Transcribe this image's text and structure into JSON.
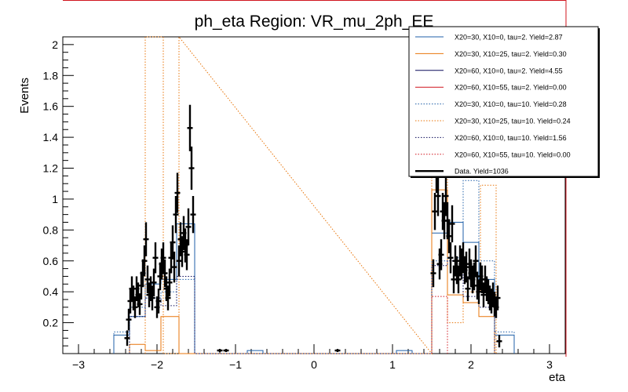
{
  "chart_data": {
    "type": "step-histogram",
    "title": "ph_eta Region: VR_mu_2ph_EE",
    "xlabel": "eta",
    "ylabel": "Events",
    "xlim": [
      -3.2,
      3.2
    ],
    "ylim": [
      0,
      2.05
    ],
    "x_ticks": [
      "−3",
      "−2",
      "−1",
      "0",
      "1",
      "2",
      "3"
    ],
    "y_ticks": [
      "0.2",
      "0.4",
      "0.6",
      "0.8",
      "1",
      "1.2",
      "1.4",
      "1.6",
      "1.8",
      "2"
    ],
    "legend_position": "top-right",
    "series": [
      {
        "name": "X20=30, X10=0, tau=2. Yield=2.87",
        "color": "#1f5fa8",
        "style": "solid",
        "points": [
          [
            -2.55,
            0
          ],
          [
            -2.55,
            0.12
          ],
          [
            -2.35,
            0.12
          ],
          [
            -2.35,
            0.24
          ],
          [
            -2.15,
            0.24
          ],
          [
            -2.15,
            0.45
          ],
          [
            -1.95,
            0.45
          ],
          [
            -1.95,
            0.48
          ],
          [
            -1.75,
            0.48
          ],
          [
            -1.75,
            0.84
          ],
          [
            -1.52,
            0.84
          ],
          [
            -1.52,
            0
          ],
          [
            -0.85,
            0
          ],
          [
            -0.85,
            0.02
          ],
          [
            -0.65,
            0.02
          ],
          [
            -0.65,
            0
          ],
          [
            1.05,
            0
          ],
          [
            1.05,
            0.02
          ],
          [
            1.25,
            0.02
          ],
          [
            1.25,
            0
          ],
          [
            1.5,
            0
          ],
          [
            1.5,
            0.78
          ],
          [
            1.7,
            0.78
          ],
          [
            1.7,
            0.85
          ],
          [
            1.9,
            0.85
          ],
          [
            1.9,
            0.72
          ],
          [
            2.1,
            0.72
          ],
          [
            2.1,
            0.48
          ],
          [
            2.3,
            0.48
          ],
          [
            2.3,
            0.12
          ],
          [
            2.55,
            0.12
          ],
          [
            2.55,
            0
          ]
        ]
      },
      {
        "name": "X20=30, X10=25, tau=2. Yield=0.30",
        "color": "#e8750a",
        "style": "solid",
        "points": [
          [
            -2.35,
            0
          ],
          [
            -2.35,
            0.06
          ],
          [
            -2.15,
            0.06
          ],
          [
            -2.15,
            0.02
          ],
          [
            -1.95,
            0.02
          ],
          [
            -1.95,
            0.24
          ],
          [
            -1.72,
            0.24
          ],
          [
            -1.72,
            0
          ],
          [
            1.5,
            0
          ],
          [
            1.5,
            1.06
          ],
          [
            1.7,
            1.06
          ],
          [
            1.7,
            0.38
          ],
          [
            1.9,
            0.38
          ],
          [
            1.9,
            0.33
          ],
          [
            2.1,
            0.33
          ],
          [
            2.1,
            0.24
          ],
          [
            2.3,
            0.24
          ],
          [
            2.3,
            0
          ]
        ]
      },
      {
        "name": "X20=60, X10=0, tau=2. Yield=4.55",
        "color": "#0a0a5a",
        "style": "solid",
        "points": []
      },
      {
        "name": "X20=60, X10=55, tau=2. Yield=0.00",
        "color": "#d0141e",
        "style": "solid",
        "points": []
      },
      {
        "name": "X20=30, X10=0, tau=10. Yield=0.28",
        "color": "#1f5fa8",
        "style": "dotted",
        "points": [
          [
            -2.55,
            0
          ],
          [
            -2.55,
            0.14
          ],
          [
            -2.35,
            0.14
          ],
          [
            -2.35,
            0.3
          ],
          [
            -2.15,
            0.3
          ],
          [
            -2.15,
            0.36
          ],
          [
            -1.95,
            0.36
          ],
          [
            -1.95,
            0.4
          ],
          [
            -1.75,
            0.4
          ],
          [
            -1.75,
            0.48
          ],
          [
            -1.52,
            0.48
          ],
          [
            -1.52,
            0
          ],
          [
            1.5,
            0
          ],
          [
            1.5,
            0.6
          ],
          [
            1.7,
            0.6
          ],
          [
            1.7,
            0.62
          ],
          [
            1.9,
            0.62
          ],
          [
            1.9,
            1.12
          ],
          [
            2.1,
            1.12
          ],
          [
            2.1,
            0.6
          ],
          [
            2.3,
            0.6
          ],
          [
            2.3,
            0.14
          ],
          [
            2.55,
            0.14
          ],
          [
            2.55,
            0
          ]
        ]
      },
      {
        "name": "X20=30, X10=25, tau=10. Yield=0.24",
        "color": "#e8750a",
        "style": "dotted",
        "points": [
          [
            -2.15,
            0
          ],
          [
            -2.15,
            2.05
          ],
          [
            -1.92,
            2.05
          ],
          [
            -1.92,
            0
          ],
          [
            -1.72,
            0
          ],
          [
            -1.72,
            2.05
          ],
          [
            1.5,
            0
          ],
          [
            1.5,
            1.72
          ],
          [
            1.7,
            1.72
          ],
          [
            1.7,
            0.2
          ],
          [
            1.9,
            0.2
          ],
          [
            1.9,
            0.4
          ],
          [
            2.12,
            0.4
          ],
          [
            2.12,
            1.09
          ],
          [
            2.32,
            1.09
          ],
          [
            2.32,
            0
          ]
        ]
      },
      {
        "name": "X20=60, X10=0, tau=10. Yield=1.56",
        "color": "#0a0a5a",
        "style": "dotted",
        "points": [
          [
            -2.35,
            0
          ],
          [
            -2.35,
            0.24
          ],
          [
            -2.15,
            0.24
          ],
          [
            -2.15,
            0.36
          ],
          [
            -1.95,
            0.36
          ],
          [
            -1.95,
            0.31
          ],
          [
            -1.75,
            0.31
          ],
          [
            -1.75,
            0.5
          ],
          [
            -1.52,
            0.5
          ],
          [
            -1.52,
            0
          ],
          [
            1.5,
            0
          ],
          [
            1.5,
            0.57
          ],
          [
            1.7,
            0.57
          ],
          [
            1.7,
            0.6
          ],
          [
            1.9,
            0.6
          ],
          [
            1.9,
            0.37
          ],
          [
            2.1,
            0.37
          ],
          [
            2.1,
            0.3
          ],
          [
            2.3,
            0.3
          ],
          [
            2.3,
            0
          ]
        ]
      },
      {
        "name": "X20=60, X10=55, tau=10. Yield=0.00",
        "color": "#d0141e",
        "style": "dotted",
        "points": [
          [
            1.5,
            0
          ],
          [
            1.5,
            0.37
          ],
          [
            1.7,
            0.37
          ],
          [
            1.7,
            0
          ]
        ]
      },
      {
        "name": "Data. Yield=1036",
        "color": "#000000",
        "style": "data",
        "points": [
          [
            -2.38,
            0.1,
            0.05
          ],
          [
            -2.36,
            0.22,
            0.07
          ],
          [
            -2.34,
            0.34,
            0.08
          ],
          [
            -2.32,
            0.42,
            0.08
          ],
          [
            -2.3,
            0.36,
            0.08
          ],
          [
            -2.28,
            0.3,
            0.07
          ],
          [
            -2.26,
            0.42,
            0.08
          ],
          [
            -2.24,
            0.38,
            0.08
          ],
          [
            -2.22,
            0.32,
            0.07
          ],
          [
            -2.2,
            0.44,
            0.09
          ],
          [
            -2.18,
            0.52,
            0.09
          ],
          [
            -2.16,
            0.6,
            0.1
          ],
          [
            -2.14,
            0.74,
            0.11
          ],
          [
            -2.12,
            0.48,
            0.09
          ],
          [
            -2.1,
            0.38,
            0.08
          ],
          [
            -2.08,
            0.42,
            0.08
          ],
          [
            -2.06,
            0.36,
            0.08
          ],
          [
            -2.04,
            0.46,
            0.09
          ],
          [
            -2.02,
            0.62,
            0.1
          ],
          [
            -2,
            0.3,
            0.07
          ],
          [
            -1.98,
            0.34,
            0.08
          ],
          [
            -1.96,
            0.5,
            0.09
          ],
          [
            -1.94,
            0.58,
            0.1
          ],
          [
            -1.92,
            0.62,
            0.1
          ],
          [
            -1.9,
            0.52,
            0.09
          ],
          [
            -1.88,
            0.42,
            0.08
          ],
          [
            -1.86,
            0.36,
            0.08
          ],
          [
            -1.84,
            0.46,
            0.09
          ],
          [
            -1.82,
            0.62,
            0.1
          ],
          [
            -1.8,
            0.72,
            0.11
          ],
          [
            -1.78,
            0.56,
            0.1
          ],
          [
            -1.76,
            0.9,
            0.12
          ],
          [
            -1.74,
            1.04,
            0.13
          ],
          [
            -1.72,
            0.6,
            0.1
          ],
          [
            -1.7,
            0.74,
            0.11
          ],
          [
            -1.68,
            0.66,
            0.1
          ],
          [
            -1.66,
            0.78,
            0.11
          ],
          [
            -1.64,
            0.7,
            0.11
          ],
          [
            -1.62,
            0.64,
            0.1
          ],
          [
            -1.6,
            0.82,
            0.12
          ],
          [
            -1.58,
            1.46,
            0.15
          ],
          [
            -1.56,
            1.2,
            0.14
          ],
          [
            -1.54,
            0.9,
            0.12
          ],
          [
            -1.2,
            0.02,
            0.01
          ],
          [
            -1.12,
            0.02,
            0.01
          ],
          [
            0.3,
            0.02,
            0.01
          ],
          [
            1.52,
            0.52,
            0.09
          ],
          [
            1.54,
            0.92,
            0.12
          ],
          [
            1.56,
            1.18,
            0.14
          ],
          [
            1.58,
            1.02,
            0.13
          ],
          [
            1.6,
            0.58,
            0.1
          ],
          [
            1.62,
            0.64,
            0.1
          ],
          [
            1.64,
            0.92,
            0.12
          ],
          [
            1.66,
            0.86,
            0.12
          ],
          [
            1.68,
            1.02,
            0.13
          ],
          [
            1.7,
            0.86,
            0.12
          ],
          [
            1.72,
            0.76,
            0.11
          ],
          [
            1.74,
            0.62,
            0.1
          ],
          [
            1.76,
            0.84,
            0.12
          ],
          [
            1.78,
            0.48,
            0.09
          ],
          [
            1.8,
            0.6,
            0.1
          ],
          [
            1.82,
            0.54,
            0.09
          ],
          [
            1.84,
            0.48,
            0.09
          ],
          [
            1.86,
            0.6,
            0.1
          ],
          [
            1.88,
            0.58,
            0.1
          ],
          [
            1.9,
            0.62,
            0.1
          ],
          [
            1.92,
            0.54,
            0.09
          ],
          [
            1.94,
            0.56,
            0.1
          ],
          [
            1.96,
            0.42,
            0.08
          ],
          [
            1.98,
            0.58,
            0.1
          ],
          [
            2,
            0.52,
            0.09
          ],
          [
            2.02,
            0.48,
            0.09
          ],
          [
            2.04,
            0.5,
            0.09
          ],
          [
            2.06,
            0.6,
            0.1
          ],
          [
            2.08,
            0.44,
            0.09
          ],
          [
            2.1,
            0.4,
            0.08
          ],
          [
            2.12,
            0.5,
            0.09
          ],
          [
            2.14,
            0.48,
            0.09
          ],
          [
            2.16,
            0.38,
            0.08
          ],
          [
            2.18,
            0.48,
            0.09
          ],
          [
            2.2,
            0.42,
            0.08
          ],
          [
            2.22,
            0.4,
            0.08
          ],
          [
            2.24,
            0.36,
            0.08
          ],
          [
            2.26,
            0.34,
            0.08
          ],
          [
            2.28,
            0.38,
            0.08
          ],
          [
            2.3,
            0.32,
            0.08
          ],
          [
            2.32,
            0.3,
            0.07
          ],
          [
            2.34,
            0.36,
            0.08
          ],
          [
            2.36,
            0.08,
            0.04
          ]
        ]
      }
    ]
  }
}
